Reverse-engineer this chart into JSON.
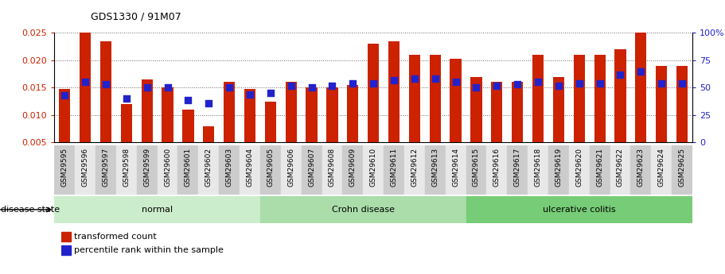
{
  "title": "GDS1330 / 91M07",
  "samples": [
    "GSM29595",
    "GSM29596",
    "GSM29597",
    "GSM29598",
    "GSM29599",
    "GSM29600",
    "GSM29601",
    "GSM29602",
    "GSM29603",
    "GSM29604",
    "GSM29605",
    "GSM29606",
    "GSM29607",
    "GSM29608",
    "GSM29609",
    "GSM29610",
    "GSM29611",
    "GSM29612",
    "GSM29613",
    "GSM29614",
    "GSM29615",
    "GSM29616",
    "GSM29617",
    "GSM29618",
    "GSM29619",
    "GSM29620",
    "GSM29621",
    "GSM29622",
    "GSM29623",
    "GSM29624",
    "GSM29625"
  ],
  "transformed_count": [
    0.0148,
    0.025,
    0.0235,
    0.012,
    0.0165,
    0.015,
    0.011,
    0.008,
    0.016,
    0.0148,
    0.0124,
    0.016,
    0.015,
    0.015,
    0.0155,
    0.023,
    0.0235,
    0.021,
    0.021,
    0.0203,
    0.017,
    0.016,
    0.016,
    0.021,
    0.017,
    0.021,
    0.021,
    0.022,
    0.025,
    0.019,
    0.019
  ],
  "percentile_rank": [
    43,
    55,
    53,
    40,
    50,
    50,
    39,
    36,
    50,
    44,
    45,
    52,
    50,
    52,
    54,
    54,
    57,
    58,
    58,
    55,
    50,
    52,
    53,
    55,
    52,
    54,
    54,
    62,
    65,
    54,
    54
  ],
  "groups": [
    {
      "label": "normal",
      "start": 0,
      "end": 10,
      "color": "#ccedcc"
    },
    {
      "label": "Crohn disease",
      "start": 10,
      "end": 20,
      "color": "#aaddaa"
    },
    {
      "label": "ulcerative colitis",
      "start": 20,
      "end": 31,
      "color": "#77cc77"
    }
  ],
  "bar_color": "#cc2200",
  "dot_color": "#2222cc",
  "ylim_left": [
    0.005,
    0.025
  ],
  "ylim_right": [
    0,
    100
  ],
  "yticks_left": [
    0.005,
    0.01,
    0.015,
    0.02,
    0.025
  ],
  "yticks_right": [
    0,
    25,
    50,
    75,
    100
  ],
  "bar_width": 0.55,
  "legend_items": [
    "transformed count",
    "percentile rank within the sample"
  ],
  "legend_colors": [
    "#cc2200",
    "#2222cc"
  ]
}
